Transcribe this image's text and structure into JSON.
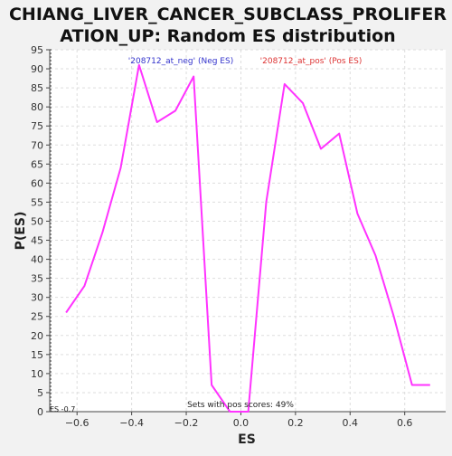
{
  "chart_data": {
    "type": "line",
    "title_lines": [
      "CHIANG_LIVER_CANCER_SUBCLASS_PROLIFER",
      "ATION_UP: Random ES distribution"
    ],
    "xlabel": "ES",
    "ylabel": "P(ES)",
    "xlim": [
      -0.7,
      0.75
    ],
    "ylim": [
      0,
      95
    ],
    "x_ticks": [
      -0.6,
      -0.4,
      -0.2,
      0.0,
      0.2,
      0.4,
      0.6
    ],
    "x_tick_labels": [
      "−0.6",
      "−0.4",
      "−0.2",
      "0.0",
      "0.2",
      "0.4",
      "0.6"
    ],
    "y_ticks": [
      0,
      5,
      10,
      15,
      20,
      25,
      30,
      35,
      40,
      45,
      50,
      55,
      60,
      65,
      70,
      75,
      80,
      85,
      90,
      95
    ],
    "grid": true,
    "legend": {
      "neg_label": "'208712_at_neg' (Neg ES)",
      "neg_color": "#3333cc",
      "pos_label": "'208712_at_pos' (Pos ES)",
      "pos_color": "#dd3333"
    },
    "annotations": {
      "bottom_center": "Sets with pos scores: 49%",
      "bottom_left": "ES -0.7"
    },
    "series": [
      {
        "color": "#ff33ff",
        "x": [
          -0.64,
          -0.573,
          -0.507,
          -0.44,
          -0.373,
          -0.307,
          -0.24,
          -0.173,
          -0.107,
          -0.04,
          0.027,
          0.093,
          0.16,
          0.227,
          0.293,
          0.36,
          0.427,
          0.493,
          0.56,
          0.627,
          0.693
        ],
        "y": [
          26,
          33,
          47,
          64,
          91,
          76,
          79,
          88,
          7,
          0,
          0,
          55,
          86,
          81,
          69,
          73,
          52,
          41,
          25,
          7,
          7
        ]
      }
    ]
  }
}
